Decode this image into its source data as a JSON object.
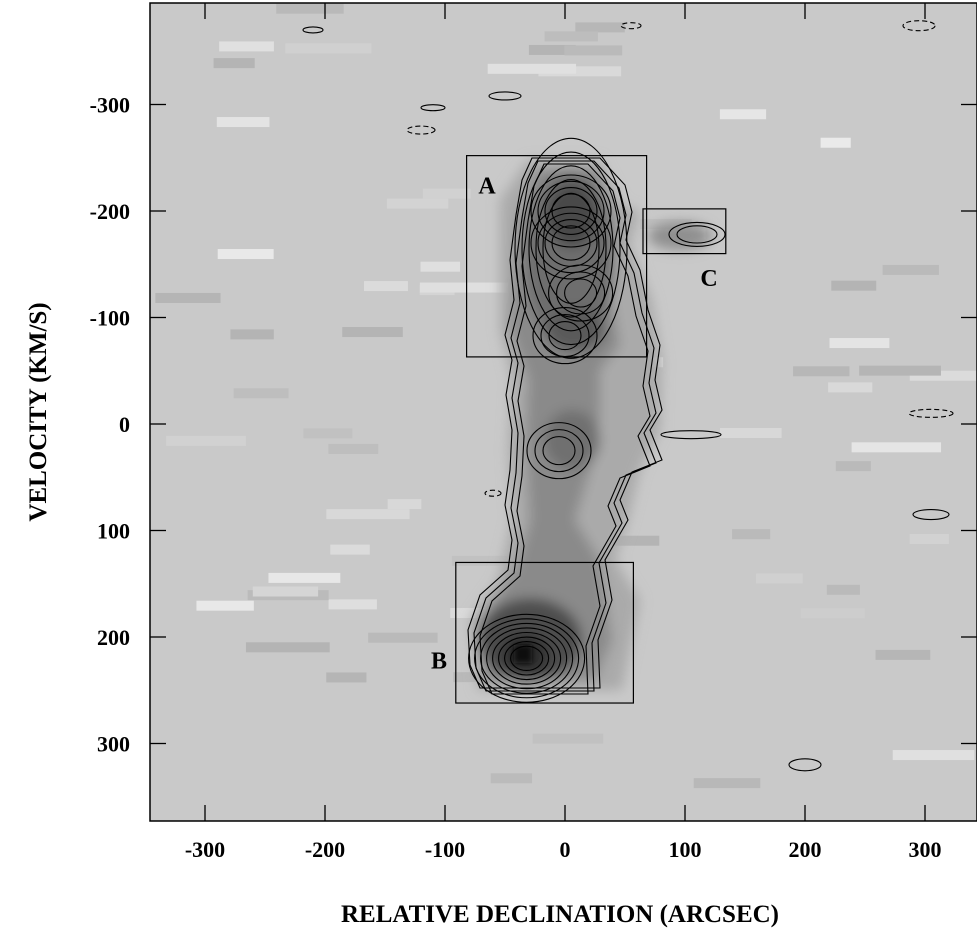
{
  "chart_data": {
    "type": "heatmap",
    "description_units": "position-velocity diagram",
    "xlabel": "RELATIVE DECLINATION (ARCSEC)",
    "ylabel": "VELOCITY (KM/S)",
    "xlim": [
      -340,
      340
    ],
    "ylim": [
      -370,
      370
    ],
    "y_inverted": true,
    "x_ticks": [
      -300,
      -200,
      -100,
      0,
      100,
      200,
      300
    ],
    "x_tick_labels": [
      "-300",
      "-200",
      "-100",
      "0",
      "100",
      "200",
      "300"
    ],
    "y_ticks": [
      -300,
      -200,
      -100,
      0,
      100,
      200,
      300
    ],
    "y_tick_labels": [
      "-300",
      "-200",
      "-100",
      "0",
      "100",
      "200",
      "300"
    ],
    "regions": [
      {
        "label": "A",
        "x_range": [
          -82,
          68
        ],
        "v_range": [
          -252,
          -63
        ]
      },
      {
        "label": "B",
        "x_range": [
          -91,
          57
        ],
        "v_range": [
          130,
          262
        ]
      },
      {
        "label": "C",
        "x_range": [
          65,
          134
        ],
        "v_range": [
          -202,
          -160
        ]
      }
    ],
    "emission_peaks": [
      {
        "x": 5,
        "v": -200
      },
      {
        "x": 5,
        "v": -170
      },
      {
        "x": 13,
        "v": -123
      },
      {
        "x": 0,
        "v": -83
      },
      {
        "x": -5,
        "v": 25
      },
      {
        "x": -32,
        "v": 220
      },
      {
        "x": 110,
        "v": -178
      }
    ],
    "grid": false,
    "colors": {
      "background": "#c9c9c9",
      "emission_dark": "#3a3a3a",
      "contour": "#000000"
    }
  }
}
